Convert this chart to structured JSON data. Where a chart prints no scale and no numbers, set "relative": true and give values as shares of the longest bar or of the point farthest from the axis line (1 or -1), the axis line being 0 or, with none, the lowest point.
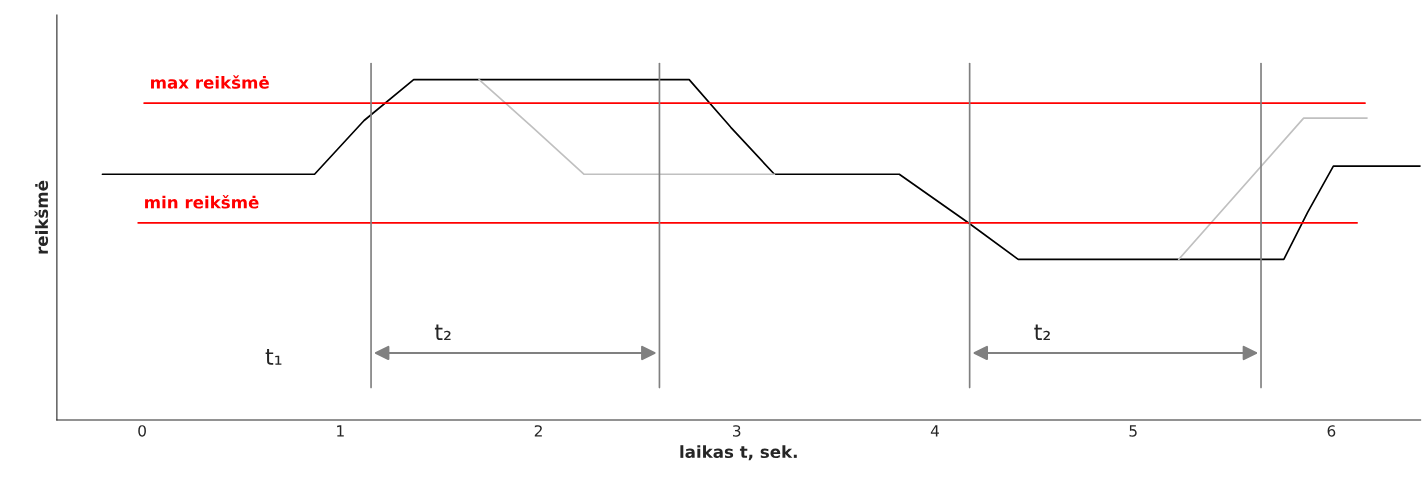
{
  "chart_data": {
    "type": "line",
    "relative": true,
    "xlabel": "laikas t, sek.",
    "ylabel": "reikšmė",
    "xlim": [
      -0.43,
      6.45
    ],
    "xticks": [
      0,
      1,
      2,
      3,
      4,
      5,
      6
    ],
    "grid": false,
    "legend": false,
    "marker": "none",
    "line_style": "solid",
    "series": [
      {
        "color": "#000000",
        "x": [
          -0.2,
          0.87,
          1.12,
          1.37,
          2.76,
          2.97,
          3.19,
          3.82,
          4.17,
          4.42,
          5.76,
          5.88,
          6.01,
          6.45
        ],
        "values": [
          0.722,
          0.722,
          0.88,
          1.0,
          1.0,
          0.86,
          0.722,
          0.722,
          0.579,
          0.472,
          0.472,
          0.61,
          0.746,
          0.746
        ]
      },
      {
        "color": "#c0c0c0",
        "x": [
          1.7,
          1.97,
          2.23,
          3.19,
          4.0,
          5.23,
          5.86,
          6.18
        ],
        "values": [
          1.0,
          0.86,
          0.722,
          0.722,
          null,
          0.472,
          0.887,
          0.887
        ]
      },
      {
        "name": "max reikšmė",
        "color": "#ff0000",
        "x": [
          0.01,
          6.17
        ],
        "values": [
          0.931,
          0.931
        ]
      },
      {
        "name": "min reikšmė",
        "color": "#ff0000",
        "x": [
          -0.02,
          6.13
        ],
        "values": [
          0.579,
          0.579
        ]
      }
    ],
    "ref_lines": [
      {
        "axis": "x",
        "value": 1.155,
        "color": "#808080"
      },
      {
        "axis": "x",
        "value": 2.61,
        "color": "#808080"
      },
      {
        "axis": "x",
        "value": 4.175,
        "color": "#808080"
      },
      {
        "axis": "x",
        "value": 5.645,
        "color": "#808080"
      }
    ],
    "annotations": [
      "t₁",
      "t₂",
      "t₂"
    ]
  }
}
